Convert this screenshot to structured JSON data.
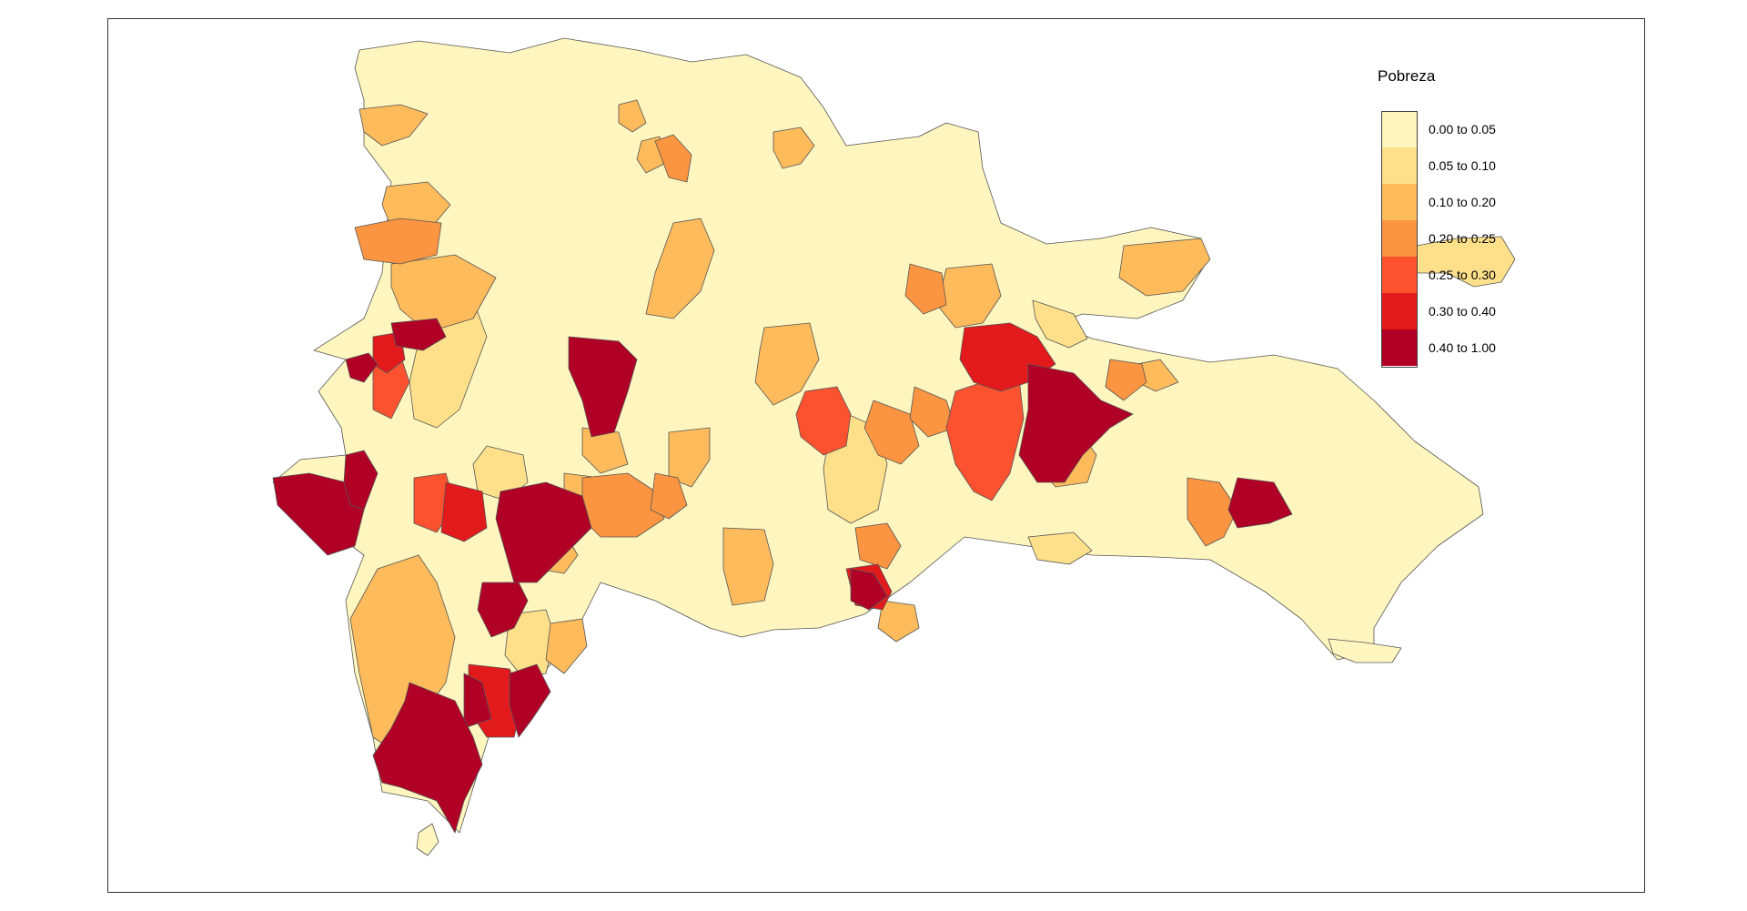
{
  "legend": {
    "title": "Pobreza",
    "classes": [
      {
        "label": "0.00 to 0.05",
        "color": "#FFF5BE"
      },
      {
        "label": "0.05 to 0.10",
        "color": "#FEE08B"
      },
      {
        "label": "0.10 to 0.20",
        "color": "#FDBB5C"
      },
      {
        "label": "0.20 to 0.25",
        "color": "#FC9542"
      },
      {
        "label": "0.25 to 0.30",
        "color": "#FC5230"
      },
      {
        "label": "0.30 to 0.40",
        "color": "#E31A1C"
      },
      {
        "label": "0.40 to 1.00",
        "color": "#B10026"
      }
    ]
  }
}
